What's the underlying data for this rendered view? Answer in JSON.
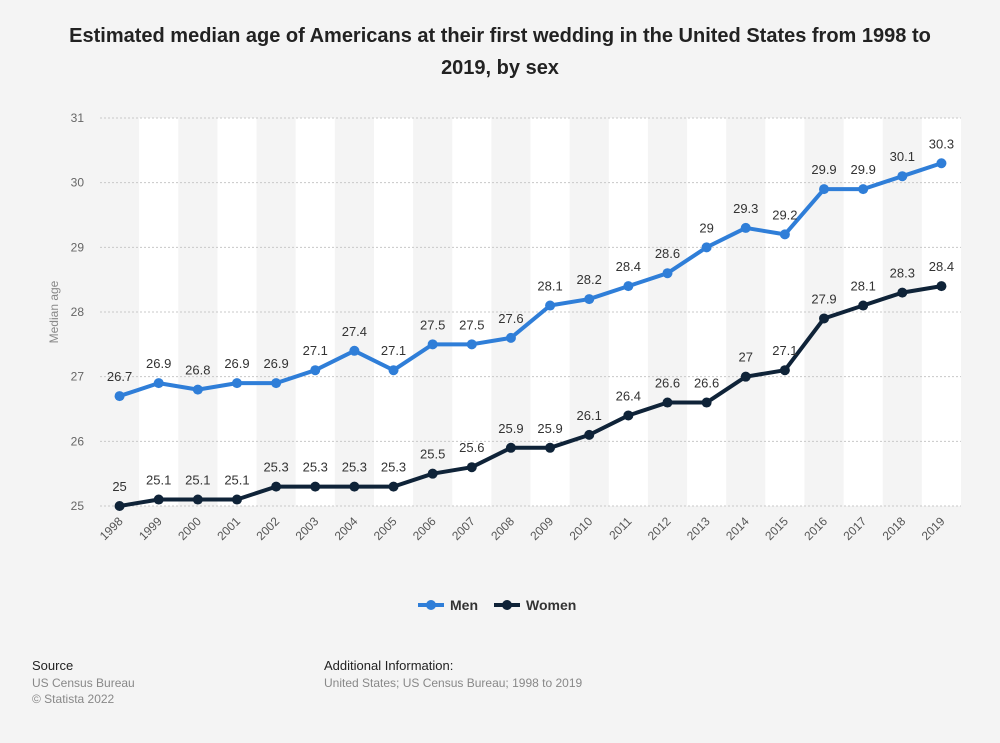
{
  "title": "Estimated median age of Americans at their first wedding in the United States from 1998 to 2019, by sex",
  "chart_data": {
    "type": "line",
    "title": "Estimated median age of Americans at their first wedding in the United States from 1998 to 2019, by sex",
    "xlabel": "",
    "ylabel": "Median age",
    "ylim": [
      25,
      31
    ],
    "yticks": [
      25,
      26,
      27,
      28,
      29,
      30,
      31
    ],
    "grid": true,
    "legend_position": "bottom-center",
    "categories": [
      "1998",
      "1999",
      "2000",
      "2001",
      "2002",
      "2003",
      "2004",
      "2005",
      "2006",
      "2007",
      "2008",
      "2009",
      "2010",
      "2011",
      "2012",
      "2013",
      "2014",
      "2015",
      "2016",
      "2017",
      "2018",
      "2019"
    ],
    "series": [
      {
        "name": "Men",
        "color": "#2f7ed8",
        "values": [
          26.7,
          26.9,
          26.8,
          26.9,
          26.9,
          27.1,
          27.4,
          27.1,
          27.5,
          27.5,
          27.6,
          28.1,
          28.2,
          28.4,
          28.6,
          29,
          29.3,
          29.2,
          29.9,
          29.9,
          30.1,
          30.3
        ]
      },
      {
        "name": "Women",
        "color": "#0f2338",
        "values": [
          25,
          25.1,
          25.1,
          25.1,
          25.3,
          25.3,
          25.3,
          25.3,
          25.5,
          25.6,
          25.9,
          25.9,
          26.1,
          26.4,
          26.6,
          26.6,
          27,
          27.1,
          27.9,
          28.1,
          28.3,
          28.4
        ]
      }
    ]
  },
  "footer": {
    "source_heading": "Source",
    "source_line1": "US Census Bureau",
    "source_line2": "© Statista 2022",
    "info_heading": "Additional Information:",
    "info_line1": "United States; US Census Bureau; 1998 to 2019"
  }
}
